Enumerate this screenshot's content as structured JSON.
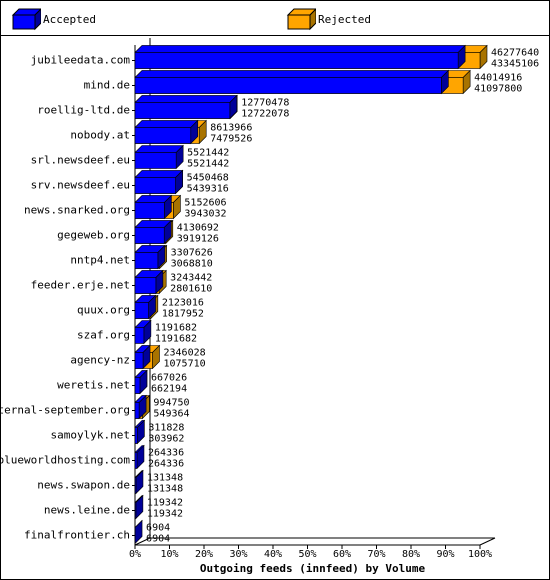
{
  "legend": {
    "accepted_label": "Accepted",
    "rejected_label": "Rejected"
  },
  "colors": {
    "accepted": "#0000ff",
    "accepted_side": "#000099",
    "rejected": "#ffa500",
    "rejected_side": "#a87300",
    "axis": "#000000"
  },
  "chart_data": {
    "type": "bar",
    "orientation": "horizontal",
    "stacking": "overlay",
    "title": "",
    "xlabel": "Outgoing feeds (innfeed) by Volume",
    "ylabel": "",
    "xlim": [
      0,
      100
    ],
    "x_ticks": [
      "0%",
      "10%",
      "20%",
      "30%",
      "40%",
      "50%",
      "60%",
      "70%",
      "80%",
      "90%",
      "100%"
    ],
    "legend_position": "top",
    "categories": [
      "jubileedata.com",
      "mind.de",
      "roellig-ltd.de",
      "nobody.at",
      "srl.newsdeef.eu",
      "srv.newsdeef.eu",
      "news.snarked.org",
      "gegeweb.org",
      "nntp4.net",
      "feeder.erje.net",
      "quux.org",
      "szaf.org",
      "agency-nz",
      "weretis.net",
      "eternal-september.org",
      "samoylyk.net",
      "blueworldhosting.com",
      "news.swapon.de",
      "news.leine.de",
      "finalfrontier.ch"
    ],
    "series": [
      {
        "name": "Accepted",
        "values": [
          43345106,
          41097800,
          12722078,
          7479526,
          5521442,
          5439316,
          3943032,
          3919126,
          3068810,
          2801610,
          1817952,
          1191682,
          1075710,
          662194,
          549364,
          303962,
          264336,
          131348,
          119342,
          6904
        ]
      },
      {
        "name": "Rejected",
        "values": [
          46277640,
          44014916,
          12770478,
          8613966,
          5521442,
          5450468,
          5152606,
          4130692,
          3307626,
          3243442,
          2123016,
          1191682,
          2346028,
          667026,
          994750,
          311828,
          264336,
          131348,
          119342,
          6904
        ]
      }
    ]
  }
}
